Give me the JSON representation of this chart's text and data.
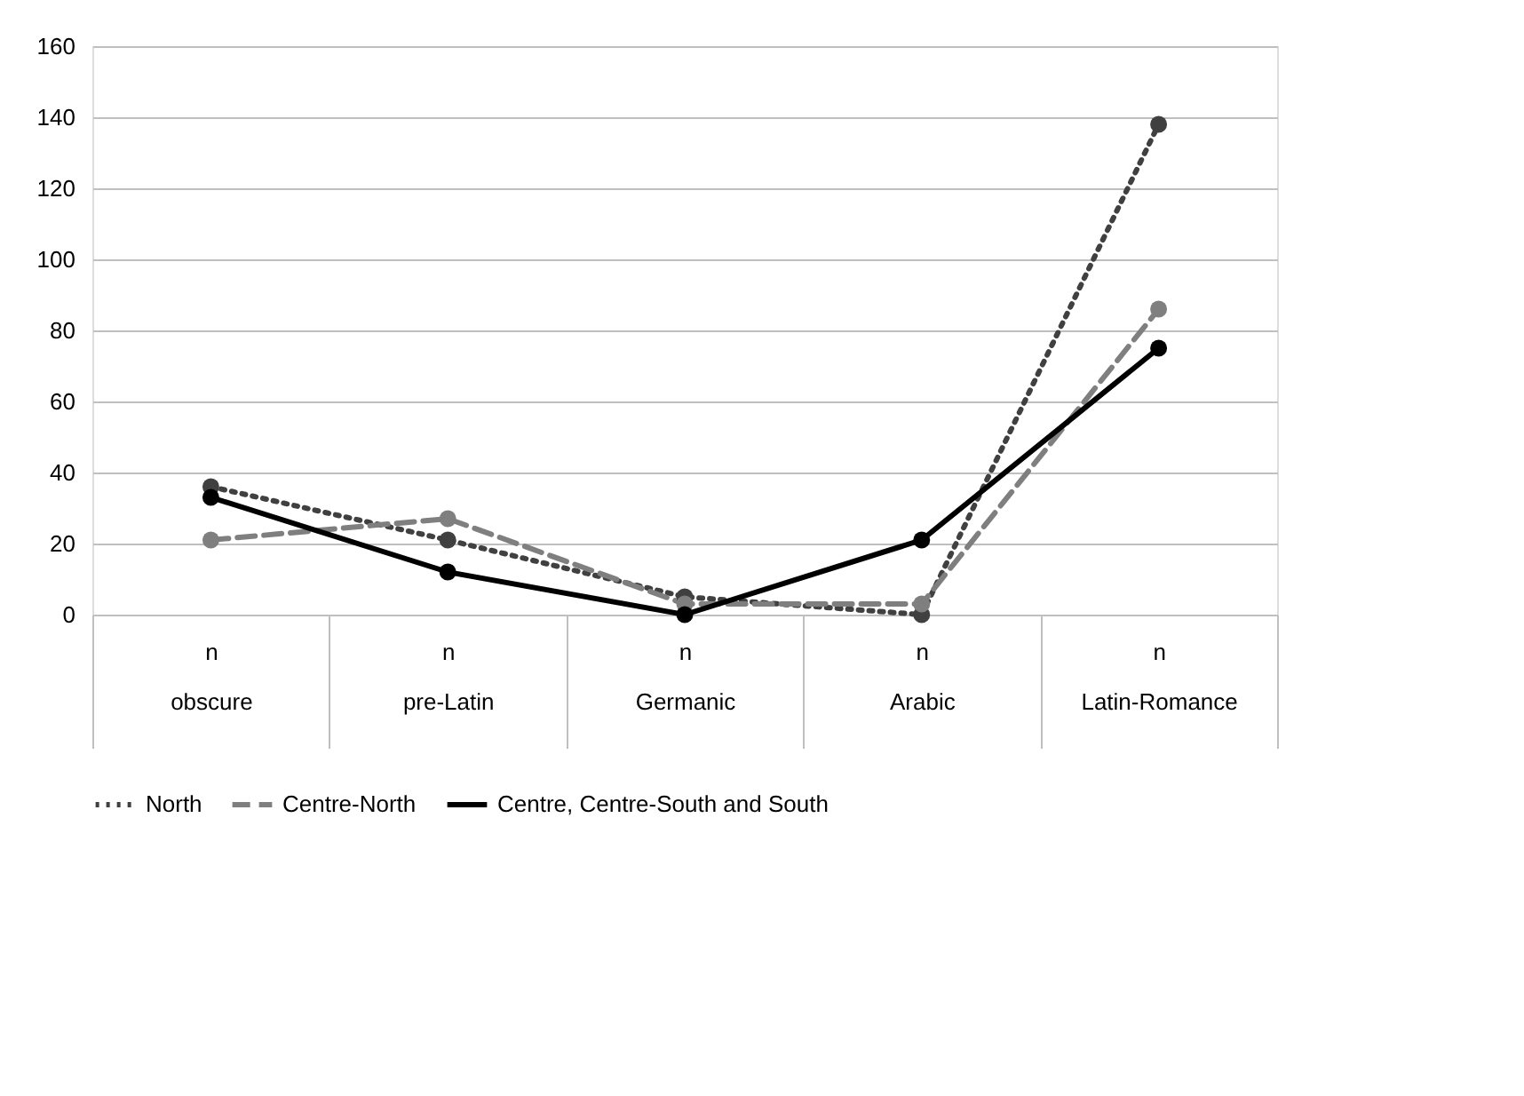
{
  "chart_data": {
    "type": "line",
    "categories": [
      "n\nobscure",
      "n\npre-Latin",
      "n\nGermanic",
      "n\nArabic",
      "n\nLatin-Romance"
    ],
    "series": [
      {
        "name": "North",
        "color": "#404040",
        "line_style": "dotted",
        "values": [
          36,
          21,
          5,
          0,
          138
        ]
      },
      {
        "name": "Centre-North",
        "color": "#7f7f7f",
        "line_style": "dashed",
        "values": [
          21,
          27,
          3,
          3,
          86
        ]
      },
      {
        "name": "Centre, Centre-South and South",
        "color": "#000000",
        "line_style": "solid",
        "values": [
          33,
          12,
          0,
          21,
          75
        ]
      }
    ],
    "ylim": [
      0,
      160
    ],
    "yticks": [
      0,
      20,
      40,
      60,
      80,
      100,
      120,
      140,
      160
    ],
    "grid": "y",
    "marker": "circle",
    "legend": "bottom"
  }
}
